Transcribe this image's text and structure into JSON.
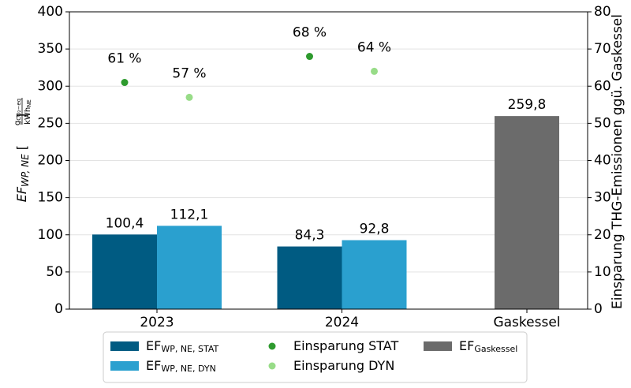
{
  "chart_data": {
    "type": "bar",
    "categories": [
      "2023",
      "2024",
      "Gaskessel"
    ],
    "series": [
      {
        "name": "EF",
        "name_subscript": "WP, NE, STAT",
        "color": "#005b82",
        "values": [
          100.4,
          84.3,
          null
        ],
        "value_labels": [
          "100,4",
          "84,3",
          null
        ]
      },
      {
        "name": "EF",
        "name_subscript": "WP, NE, DYN",
        "color": "#2aa0cf",
        "values": [
          112.1,
          92.8,
          null
        ],
        "value_labels": [
          "112,1",
          "92,8",
          null
        ]
      },
      {
        "name": "Einsparung STAT",
        "type": "scatter",
        "axis": "y2",
        "color": "#2e9a2e",
        "values": [
          61,
          68,
          null
        ],
        "value_labels": [
          "61 %",
          "68 %",
          null
        ]
      },
      {
        "name": "Einsparung DYN",
        "type": "scatter",
        "axis": "y2",
        "color": "#98dc88",
        "values": [
          57,
          64,
          null
        ],
        "value_labels": [
          "57 %",
          "64 %",
          null
        ]
      },
      {
        "name": "EF",
        "name_subscript": "Gaskessel",
        "color": "#6b6b6b",
        "values": [
          null,
          null,
          259.8
        ],
        "value_labels": [
          null,
          null,
          "259,8"
        ]
      }
    ],
    "ylabel": {
      "main": "EF",
      "sub": "WP, NE",
      "num": "g",
      "num_sub": "CO₂−eq",
      "den": "kWh",
      "den_sub": "NE"
    },
    "y2label": "Einsparung THG-Emissionen ggü. Gaskessel",
    "ylim": [
      0,
      400
    ],
    "yticks": [
      0,
      50,
      100,
      150,
      200,
      250,
      300,
      350,
      400
    ],
    "y2lim": [
      0,
      80
    ],
    "y2ticks": [
      0,
      10,
      20,
      30,
      40,
      50,
      60,
      70,
      80
    ],
    "grid": true,
    "legend": "bottom"
  }
}
